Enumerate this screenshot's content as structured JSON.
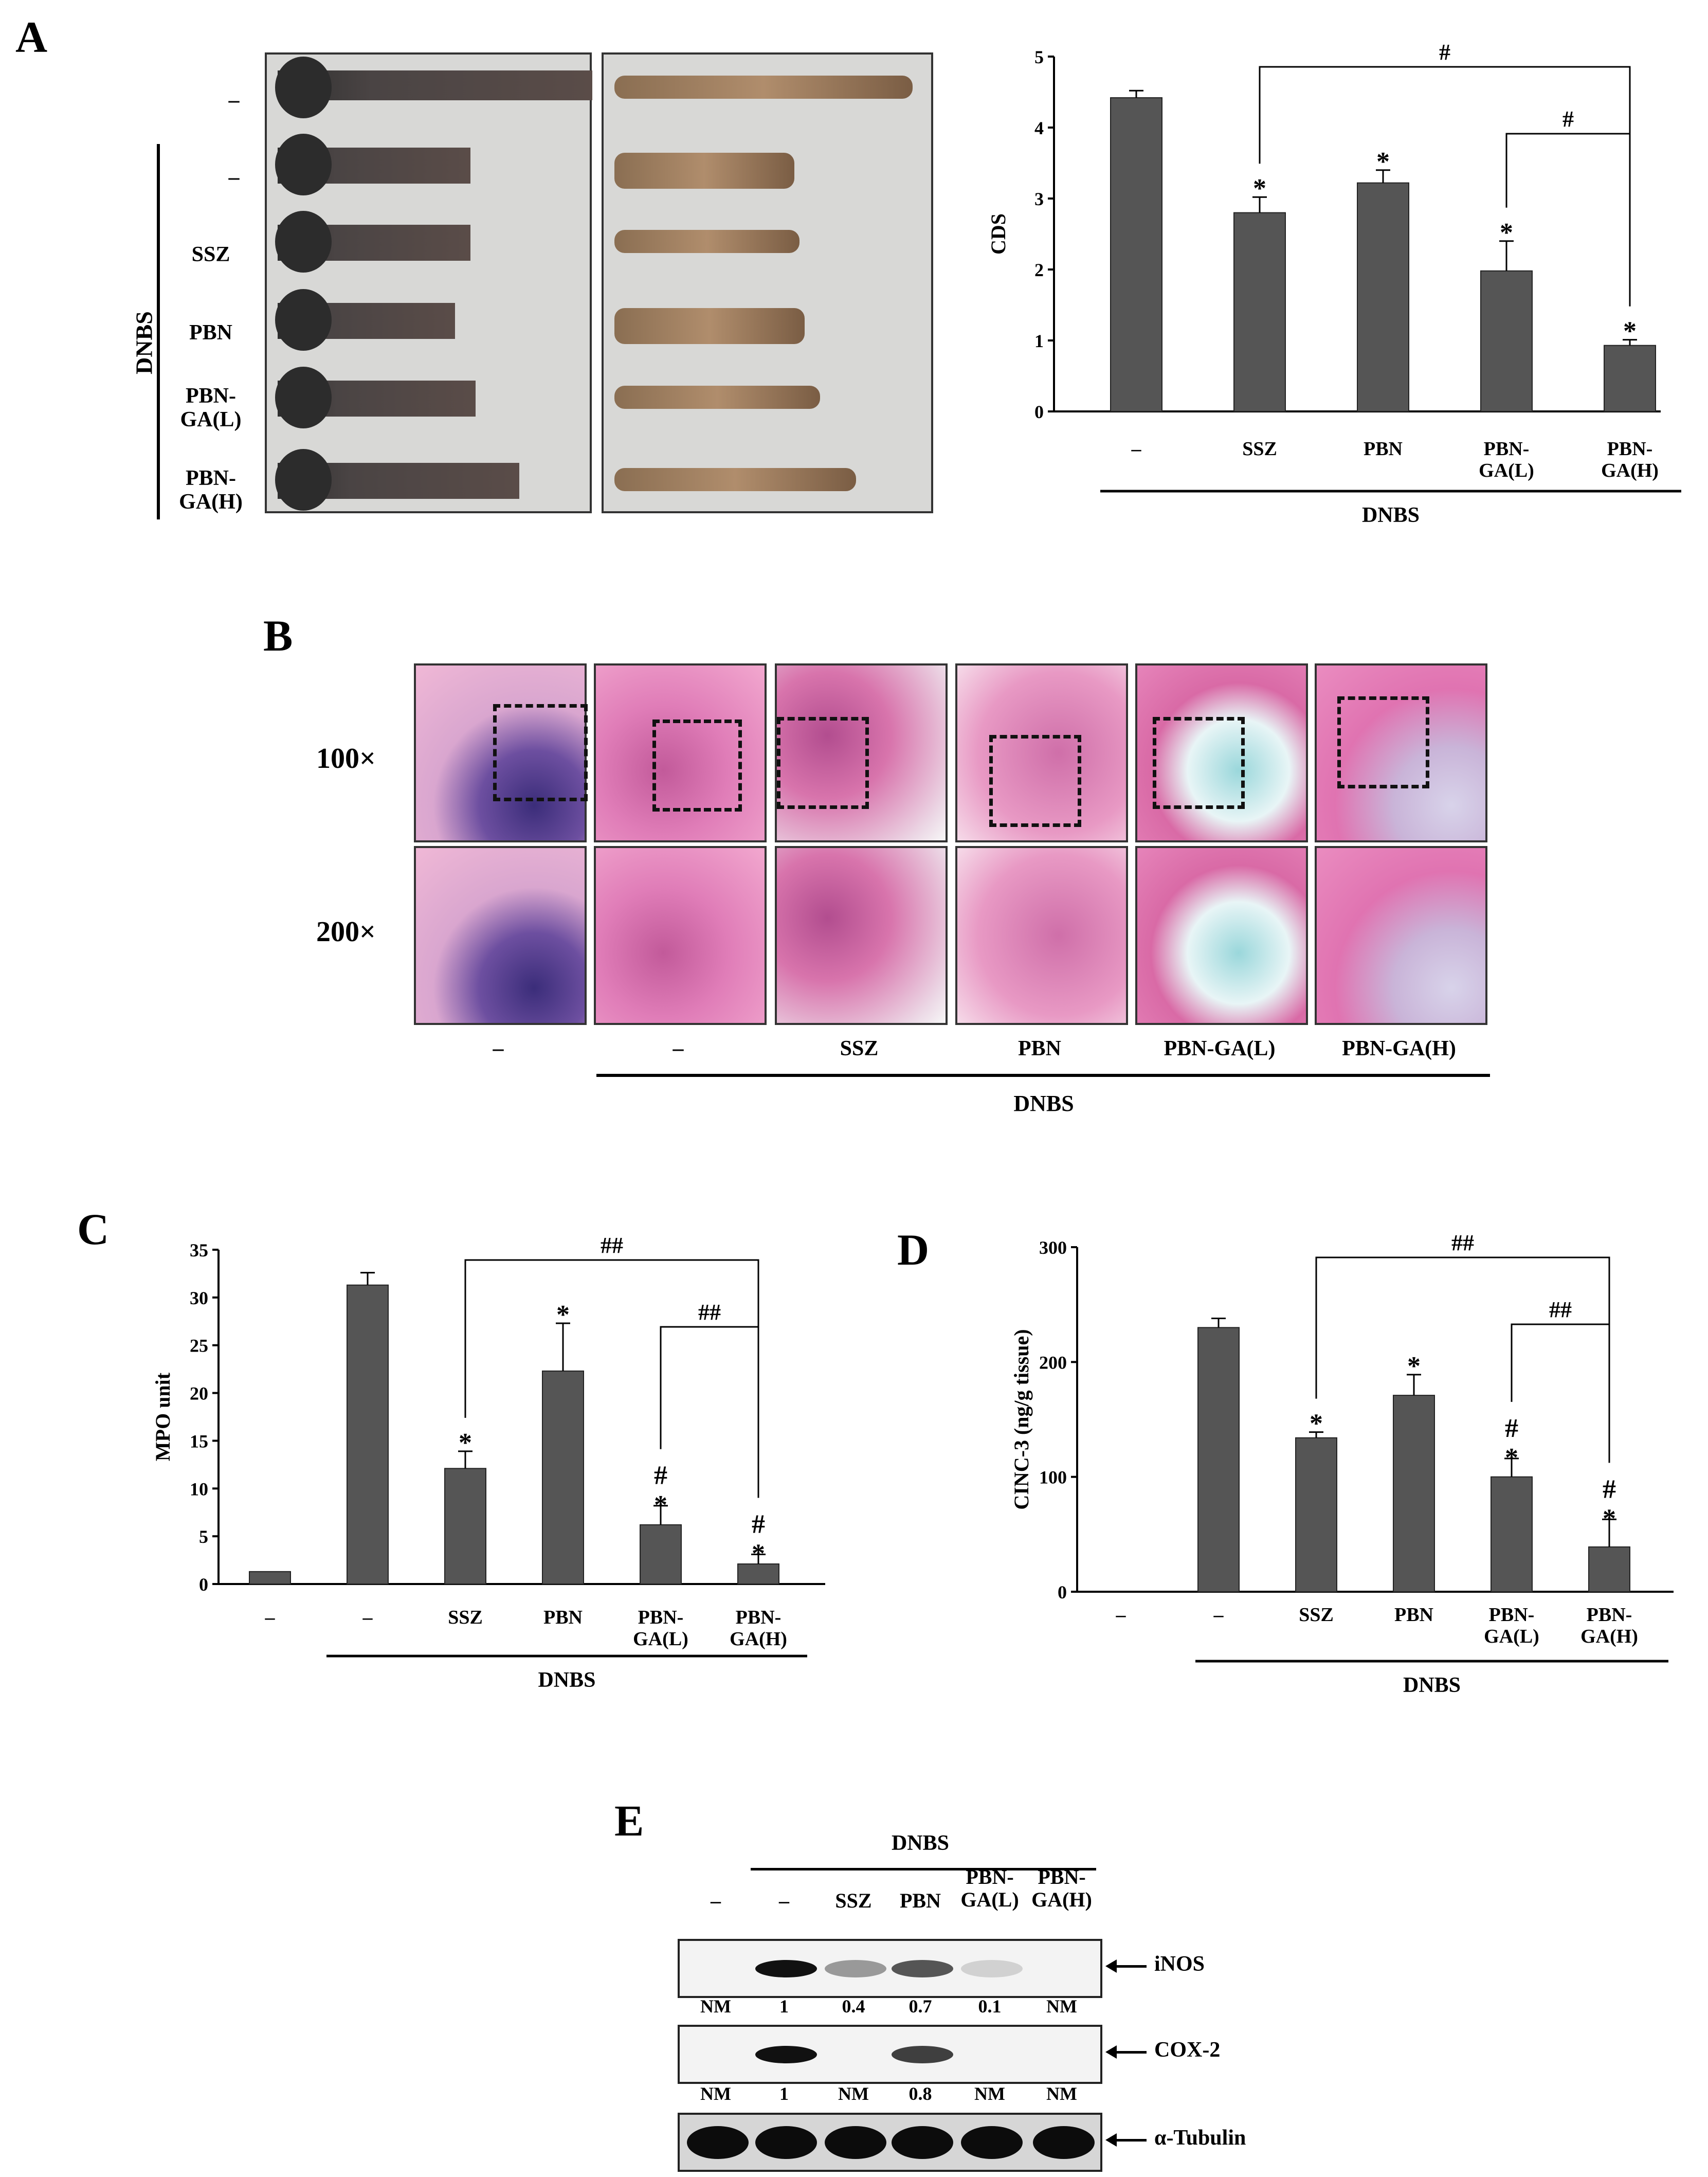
{
  "panels": {
    "a": "A",
    "b": "B",
    "c": "C",
    "d": "D",
    "e": "E"
  },
  "common": {
    "dash": "–",
    "dnbs": "DNBS"
  },
  "panel_a": {
    "row_labels": [
      "–",
      "–",
      "SSZ",
      "PBN",
      "PBN-\nGA(L)",
      "PBN-\nGA(H)"
    ]
  },
  "panel_b": {
    "mag_100": "100×",
    "mag_200": "200×",
    "group_labels": [
      "–",
      "–",
      "SSZ",
      "PBN",
      "PBN-GA(L)",
      "PBN-GA(H)"
    ]
  },
  "panel_e": {
    "lanes": [
      "–",
      "–",
      "SSZ",
      "PBN",
      "PBN-\nGA(L)",
      "PBN-\nGA(H)"
    ],
    "markers": [
      "iNOS",
      "COX-2",
      "α-Tubulin"
    ],
    "inos_values": [
      "NM",
      "1",
      "0.4",
      "0.7",
      "0.1",
      "NM"
    ],
    "cox2_values": [
      "NM",
      "1",
      "NM",
      "0.8",
      "NM",
      "NM"
    ],
    "inos_intensity": [
      0,
      1,
      0.4,
      0.7,
      0.1,
      0
    ],
    "cox2_intensity": [
      0,
      1,
      0,
      0.8,
      0,
      0
    ],
    "tubulin_intensity": [
      1,
      1,
      1,
      1,
      1,
      1
    ]
  },
  "chart_data": [
    {
      "panel": "A",
      "type": "bar",
      "categories": [
        "–",
        "SSZ",
        "PBN",
        "PBN-\nGA(L)",
        "PBN-\nGA(H)"
      ],
      "values": [
        4.42,
        2.8,
        3.22,
        1.98,
        0.93
      ],
      "errors": [
        0.1,
        0.22,
        0.18,
        0.42,
        0.08
      ],
      "marks": [
        "",
        "*",
        "*",
        "*",
        "*"
      ],
      "ylabel": "CDS",
      "ylim": [
        0,
        5
      ],
      "yticks": [
        0,
        1,
        2,
        3,
        4,
        5
      ],
      "group_label": "DNBS",
      "comparisons": [
        {
          "from": 1,
          "to": 4,
          "label": "#"
        },
        {
          "from": 3,
          "to": 4,
          "label": "#"
        }
      ],
      "bar_color": "#555555"
    },
    {
      "panel": "C",
      "type": "bar",
      "categories": [
        "–",
        "–",
        "SSZ",
        "PBN",
        "PBN-\nGA(L)",
        "PBN-\nGA(H)"
      ],
      "values": [
        1.3,
        31.3,
        12.1,
        22.3,
        6.2,
        2.1
      ],
      "errors": [
        0,
        1.3,
        1.8,
        5.0,
        2.0,
        1.0
      ],
      "marks": [
        "",
        "",
        "*",
        "*",
        "#\n*",
        "#\n*"
      ],
      "ylabel": "MPO unit",
      "ylim": [
        0,
        35
      ],
      "yticks": [
        0,
        5,
        10,
        15,
        20,
        25,
        30,
        35
      ],
      "group_label": "DNBS",
      "comparisons": [
        {
          "from": 2,
          "to": 5,
          "label": "##"
        },
        {
          "from": 4,
          "to": 5,
          "label": "##"
        }
      ],
      "bar_color": "#555555"
    },
    {
      "panel": "D",
      "type": "bar",
      "categories": [
        "–",
        "–",
        "SSZ",
        "PBN",
        "PBN-\nGA(L)",
        "PBN-\nGA(H)"
      ],
      "values": [
        0,
        230,
        134,
        171,
        100,
        39
      ],
      "errors": [
        0,
        8,
        5,
        18,
        16,
        24
      ],
      "marks": [
        "",
        "",
        "*",
        "*",
        "#\n*",
        "#\n*"
      ],
      "ylabel": "CINC-3 (ng/g tissue)",
      "ylim": [
        0,
        300
      ],
      "yticks": [
        0,
        100,
        200,
        300
      ],
      "group_label": "DNBS",
      "comparisons": [
        {
          "from": 2,
          "to": 5,
          "label": "##"
        },
        {
          "from": 4,
          "to": 5,
          "label": "##"
        }
      ],
      "bar_color": "#555555"
    }
  ]
}
